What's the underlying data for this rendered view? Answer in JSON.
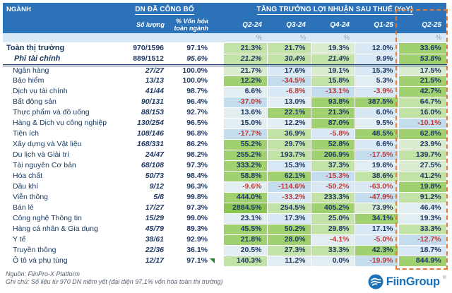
{
  "colors": {
    "header_bg": "#2B72B8",
    "unit_row_bg": "#D9E8F5",
    "highlight_dashed": "#E07B39",
    "positive_text": "#1F3864",
    "negative_text": "#BE3A34",
    "sector_text": "#17375E",
    "brand_blue": "#1A6FB6",
    "scale": [
      "#C3DCEE",
      "#D8E8F4",
      "#E3EEF2",
      "#DAECCF",
      "#C2E2A8",
      "#A0D06F",
      "#8AC451"
    ]
  },
  "header": {
    "nganh": "NGÀNH",
    "dn_group": "DN ĐÃ CÔNG BỐ",
    "growth_group": "TĂNG TRƯỞNG LỢI NHUẬN SAU THUẾ (YoY)",
    "so_luong": "Số lượng",
    "von_hoa": "% Vốn hóa toàn ngành",
    "unit_symbol": "%",
    "unit_flags": [
      true,
      true,
      true,
      false,
      true
    ]
  },
  "chart_data": {
    "type": "table",
    "title": "TĂNG TRƯỞNG LỢI NHUẬN SAU THUẾ (YoY)",
    "columns": [
      "Q2-24",
      "Q3-24",
      "Q4-24",
      "Q1-25",
      "Q2-25"
    ],
    "value_unit": "%",
    "highlighted_column": "Q2-25",
    "summary_rows": [
      {
        "name": "Toàn thị trường",
        "count": "970/1596",
        "cap": "97.1%",
        "values": [
          21.3,
          21.7,
          19.3,
          12.0,
          33.6
        ],
        "levels": [
          4,
          4,
          3,
          1,
          5
        ],
        "italic": false
      },
      {
        "name": "Phi tài chính",
        "count": "889/1512",
        "cap": "95.6%",
        "values": [
          21.2,
          30.4,
          21.4,
          9.9,
          53.8
        ],
        "levels": [
          4,
          4,
          4,
          1,
          5
        ],
        "italic": true
      }
    ],
    "rows": [
      {
        "name": "Ngân hàng",
        "count": "27/27",
        "cap": "100.0%",
        "values": [
          21.7,
          17.6,
          19.1,
          15.3,
          17.5
        ],
        "levels": [
          3,
          1,
          3,
          1,
          3
        ]
      },
      {
        "name": "Bảo hiểm",
        "count": "13/13",
        "cap": "100.0%",
        "values": [
          12.2,
          -34.5,
          15.8,
          5.3,
          21.5
        ],
        "levels": [
          5,
          0,
          4,
          2,
          5
        ]
      },
      {
        "name": "Dịch vụ tài chính",
        "count": "41/44",
        "cap": "98.7%",
        "values": [
          6.6,
          -6.8,
          -13.1,
          -3.9,
          42.7
        ],
        "levels": [
          2,
          1,
          0,
          1,
          5
        ]
      },
      {
        "name": "Bất động sản",
        "count": "90/131",
        "cap": "96.4%",
        "values": [
          -37.0,
          13.0,
          93.8,
          387.5,
          64.7
        ],
        "levels": [
          0,
          2,
          5,
          5,
          4
        ]
      },
      {
        "name": "Thực phẩm và đồ uống",
        "count": "88/153",
        "cap": "92.7%",
        "values": [
          13.6,
          22.1,
          21.3,
          6.0,
          16.0
        ],
        "levels": [
          2,
          5,
          5,
          1,
          4
        ]
      },
      {
        "name": "Hàng & Dịch vụ công nghiệp",
        "count": "130/254",
        "cap": "96.5%",
        "values": [
          15.0,
          12.2,
          87.0,
          9.5,
          -10.1
        ],
        "levels": [
          2,
          2,
          5,
          2,
          0
        ]
      },
      {
        "name": "Tiện ích",
        "count": "108/146",
        "cap": "96.8%",
        "values": [
          -17.7,
          36.9,
          -5.8,
          48.5,
          62.8
        ],
        "levels": [
          0,
          4,
          1,
          5,
          5
        ]
      },
      {
        "name": "Xây dựng và Vật liệu",
        "count": "168/331",
        "cap": "86.2%",
        "values": [
          55.2,
          29.7,
          52.8,
          6.6,
          23.9
        ],
        "levels": [
          5,
          4,
          5,
          1,
          3
        ]
      },
      {
        "name": "Du lịch và Giải trí",
        "count": "24/47",
        "cap": "98.2%",
        "values": [
          255.2,
          193.7,
          206.9,
          -17.5,
          139.7
        ],
        "levels": [
          5,
          4,
          5,
          0,
          4
        ]
      },
      {
        "name": "Tài nguyên Cơ bản",
        "count": "68/108",
        "cap": "97.3%",
        "values": [
          333.2,
          15.3,
          37.3,
          19.6,
          27.5
        ],
        "levels": [
          5,
          1,
          4,
          2,
          3
        ]
      },
      {
        "name": "Hóa chất",
        "count": "50/73",
        "cap": "98.4%",
        "values": [
          58.8,
          62.1,
          -15.3,
          38.6,
          41.2
        ],
        "levels": [
          5,
          5,
          0,
          4,
          4
        ]
      },
      {
        "name": "Dầu khí",
        "count": "9/12",
        "cap": "96.3%",
        "values": [
          -9.6,
          -114.6,
          -59.2,
          -63.0,
          19.8
        ],
        "levels": [
          2,
          0,
          1,
          1,
          5
        ]
      },
      {
        "name": "Viễn thông",
        "count": "5/8",
        "cap": "99.8%",
        "values": [
          444.0,
          -33.2,
          233.3,
          -47.9,
          91.2
        ],
        "levels": [
          5,
          1,
          4,
          0,
          4
        ]
      },
      {
        "name": "Bán lẻ",
        "count": "17/27",
        "cap": "97.3%",
        "values": [
          2884.5,
          254.5,
          405.2,
          73.9,
          46.4
        ],
        "levels": [
          6,
          4,
          5,
          3,
          2
        ]
      },
      {
        "name": "Công nghệ Thông tin",
        "count": "15/29",
        "cap": "99.0%",
        "values": [
          23.1,
          17.3,
          25.0,
          34.1,
          19.3
        ],
        "levels": [
          2,
          1,
          4,
          5,
          2
        ]
      },
      {
        "name": "Hàng cá nhân & Gia dụng",
        "count": "45/79",
        "cap": "89.3%",
        "values": [
          45.5,
          50.2,
          29.8,
          17.1,
          33.3
        ],
        "levels": [
          5,
          5,
          4,
          1,
          4
        ]
      },
      {
        "name": "Y tế",
        "count": "38/61",
        "cap": "92.9%",
        "values": [
          21.8,
          28.0,
          -4.1,
          -5.0,
          -12.7
        ],
        "levels": [
          5,
          5,
          2,
          1,
          0
        ]
      },
      {
        "name": "Truyền thông",
        "count": "22/36",
        "cap": "36.1%",
        "values": [
          20.5,
          27.3,
          33.3,
          42.3,
          18.7
        ],
        "levels": [
          2,
          4,
          4,
          5,
          1
        ]
      },
      {
        "name": "Ô tô và phụ tùng",
        "count": "12/17",
        "cap": "97.1%",
        "values": [
          140.3,
          11.2,
          0.0,
          -19.9,
          844.9
        ],
        "levels": [
          4,
          2,
          2,
          0,
          5
        ]
      }
    ]
  },
  "footer": {
    "source": "Nguồn: FiinPro-X Platform",
    "note": "Ghi chú: Số liệu từ 970 DN niêm yết (đại diện 97,1% vốn hóa toàn thị trường)",
    "brand": "FiinGroup",
    "reg_mark": "®"
  }
}
